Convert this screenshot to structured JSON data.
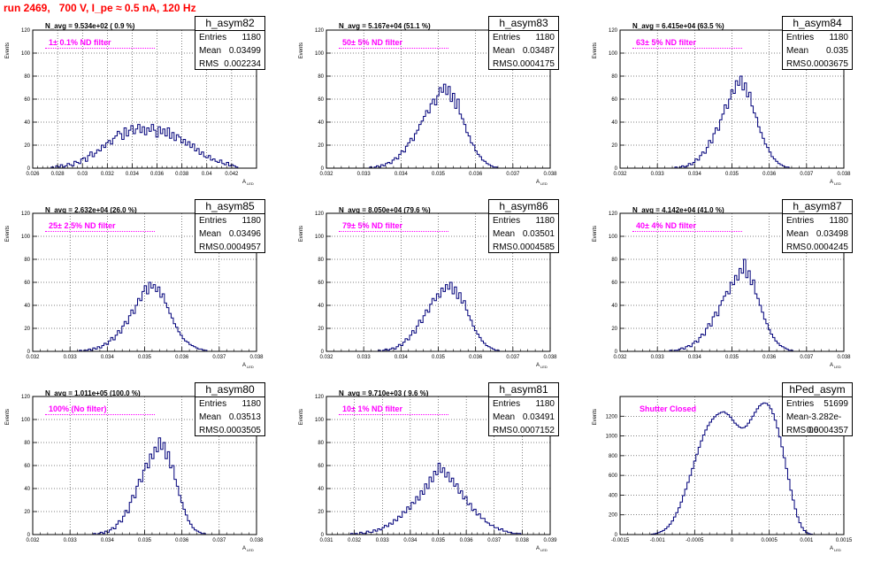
{
  "run_title": "run 2469,   700 V, I_pe ≈ 0.5 nA, 120 Hz",
  "colors": {
    "title": "#ff0000",
    "filter_label": "#ff00ff",
    "histogram": "#00007a",
    "frame": "#000000"
  },
  "ylabel": "Events",
  "xlabel": "A",
  "xlabel_sub": "LED",
  "chart_data": [
    {
      "type": "histogram",
      "name": "h_asym82",
      "navg": "N_avg = 9.534e+02 ( 0.9 %)",
      "filter": "1± 0.1% ND filter",
      "entries": "1180",
      "mean": "0.03499",
      "rms": "0.002234",
      "xlim": [
        0.026,
        0.044
      ],
      "ylim": [
        0,
        120
      ],
      "grid": true,
      "xticks": [
        0.026,
        0.028,
        0.03,
        0.032,
        0.034,
        0.036,
        0.038,
        0.04,
        0.042
      ],
      "xticklabels": [
        "0.026",
        "0.028",
        "0.03",
        "0.032",
        "0.034",
        "0.036",
        "0.038",
        "0.04",
        "0.042"
      ],
      "yticks": [
        0,
        20,
        40,
        60,
        80,
        100,
        120
      ],
      "bin_width": 0.000183,
      "counts": [
        1,
        0,
        2,
        1,
        3,
        1,
        2,
        4,
        3,
        2,
        6,
        5,
        4,
        8,
        9,
        6,
        11,
        14,
        10,
        13,
        16,
        15,
        20,
        18,
        22,
        24,
        21,
        26,
        28,
        32,
        30,
        25,
        35,
        28,
        33,
        37,
        30,
        34,
        38,
        31,
        36,
        29,
        35,
        32,
        38,
        33,
        27,
        36,
        30,
        34,
        28,
        35,
        26,
        31,
        24,
        29,
        27,
        22,
        25,
        20,
        23,
        18,
        21,
        15,
        17,
        12,
        14,
        10,
        9,
        11,
        7,
        8,
        6,
        5,
        7,
        4,
        3,
        5,
        2,
        3,
        2,
        1
      ]
    },
    {
      "type": "histogram",
      "name": "h_asym83",
      "navg": "N_avg = 5.167e+04 (51.1 %)",
      "filter": "50± 5% ND filter",
      "entries": "1180",
      "mean": "0.03487",
      "rms": "0.0004175",
      "xlim": [
        0.032,
        0.038
      ],
      "ylim": [
        0,
        120
      ],
      "grid": true,
      "xticks": [
        0.032,
        0.033,
        0.034,
        0.035,
        0.036,
        0.037,
        0.038
      ],
      "xticklabels": [
        "0.032",
        "0.033",
        "0.034",
        "0.035",
        "0.036",
        "0.037",
        "0.038"
      ],
      "yticks": [
        0,
        20,
        40,
        60,
        80,
        100,
        120
      ],
      "bin_width": 6e-05,
      "counts": [
        1,
        0,
        1,
        2,
        1,
        3,
        2,
        4,
        5,
        4,
        7,
        9,
        8,
        12,
        15,
        14,
        19,
        22,
        26,
        24,
        30,
        33,
        38,
        41,
        45,
        50,
        48,
        56,
        60,
        55,
        63,
        70,
        66,
        73,
        64,
        71,
        58,
        65,
        52,
        60,
        47,
        43,
        38,
        31,
        28,
        22,
        20,
        15,
        12,
        10,
        7,
        6,
        4,
        3,
        2,
        1,
        1
      ]
    },
    {
      "type": "histogram",
      "name": "h_asym84",
      "navg": "N_avg = 6.415e+04 (63.5 %)",
      "filter": "63± 5% ND filter",
      "entries": "1180",
      "mean": "0.035",
      "rms": "0.0003675",
      "xlim": [
        0.032,
        0.038
      ],
      "ylim": [
        0,
        120
      ],
      "grid": true,
      "xticks": [
        0.032,
        0.033,
        0.034,
        0.035,
        0.036,
        0.037,
        0.038
      ],
      "xticklabels": [
        "0.032",
        "0.033",
        "0.034",
        "0.035",
        "0.036",
        "0.037",
        "0.038"
      ],
      "yticks": [
        0,
        20,
        40,
        60,
        80,
        100,
        120
      ],
      "bin_width": 6e-05,
      "counts": [
        1,
        0,
        1,
        2,
        1,
        2,
        4,
        3,
        5,
        8,
        7,
        11,
        14,
        13,
        18,
        24,
        22,
        30,
        35,
        33,
        42,
        47,
        55,
        52,
        60,
        68,
        65,
        76,
        72,
        80,
        68,
        74,
        62,
        66,
        54,
        48,
        44,
        36,
        31,
        26,
        21,
        18,
        14,
        10,
        8,
        6,
        4,
        3,
        2,
        1,
        1
      ]
    },
    {
      "type": "histogram",
      "name": "h_asym85",
      "navg": "N_avg = 2.632e+04 (26.0 %)",
      "filter": "25± 2.5% ND filter",
      "entries": "1180",
      "mean": "0.03496",
      "rms": "0.0004957",
      "xlim": [
        0.032,
        0.038
      ],
      "ylim": [
        0,
        120
      ],
      "grid": true,
      "xticks": [
        0.032,
        0.033,
        0.034,
        0.035,
        0.036,
        0.037,
        0.038
      ],
      "xticklabels": [
        "0.032",
        "0.033",
        "0.034",
        "0.035",
        "0.036",
        "0.037",
        "0.038"
      ],
      "yticks": [
        0,
        20,
        40,
        60,
        80,
        100,
        120
      ],
      "bin_width": 6e-05,
      "counts": [
        1,
        0,
        1,
        1,
        2,
        1,
        3,
        2,
        4,
        3,
        5,
        7,
        6,
        9,
        12,
        10,
        14,
        18,
        16,
        22,
        26,
        24,
        31,
        36,
        33,
        40,
        46,
        44,
        52,
        57,
        50,
        60,
        55,
        58,
        52,
        56,
        47,
        50,
        42,
        38,
        33,
        29,
        24,
        21,
        17,
        14,
        11,
        9,
        8,
        6,
        5,
        4,
        3,
        2,
        2,
        1,
        1
      ]
    },
    {
      "type": "histogram",
      "name": "h_asym86",
      "navg": "N_avg = 8.050e+04 (79.6 %)",
      "filter": "79± 5% ND filter",
      "entries": "1180",
      "mean": "0.03501",
      "rms": "0.0004585",
      "xlim": [
        0.032,
        0.038
      ],
      "ylim": [
        0,
        120
      ],
      "grid": true,
      "xticks": [
        0.032,
        0.033,
        0.034,
        0.035,
        0.036,
        0.037,
        0.038
      ],
      "xticklabels": [
        "0.032",
        "0.033",
        "0.034",
        "0.035",
        "0.036",
        "0.037",
        "0.038"
      ],
      "yticks": [
        0,
        20,
        40,
        60,
        80,
        100,
        120
      ],
      "bin_width": 6e-05,
      "counts": [
        1,
        0,
        1,
        2,
        1,
        2,
        3,
        2,
        4,
        6,
        5,
        8,
        11,
        10,
        14,
        18,
        16,
        22,
        27,
        25,
        31,
        36,
        34,
        41,
        46,
        44,
        50,
        47,
        55,
        52,
        58,
        54,
        60,
        50,
        56,
        46,
        51,
        42,
        44,
        36,
        31,
        27,
        22,
        18,
        15,
        12,
        9,
        7,
        5,
        4,
        3,
        2,
        1,
        1
      ]
    },
    {
      "type": "histogram",
      "name": "h_asym87",
      "navg": "N_avg = 4.142e+04 (41.0 %)",
      "filter": "40± 4% ND filter",
      "entries": "1180",
      "mean": "0.03498",
      "rms": "0.0004245",
      "xlim": [
        0.032,
        0.038
      ],
      "ylim": [
        0,
        120
      ],
      "grid": true,
      "xticks": [
        0.032,
        0.033,
        0.034,
        0.035,
        0.036,
        0.037,
        0.038
      ],
      "xticklabels": [
        "0.032",
        "0.033",
        "0.034",
        "0.035",
        "0.036",
        "0.037",
        "0.038"
      ],
      "yticks": [
        0,
        20,
        40,
        60,
        80,
        100,
        120
      ],
      "bin_width": 6e-05,
      "counts": [
        1,
        0,
        1,
        1,
        2,
        3,
        2,
        4,
        5,
        4,
        7,
        9,
        8,
        12,
        15,
        14,
        20,
        24,
        22,
        30,
        34,
        31,
        40,
        44,
        48,
        52,
        50,
        60,
        58,
        66,
        62,
        72,
        68,
        80,
        64,
        70,
        58,
        62,
        50,
        46,
        40,
        34,
        28,
        24,
        19,
        15,
        12,
        9,
        7,
        5,
        4,
        3,
        2,
        1,
        1
      ]
    },
    {
      "type": "histogram",
      "name": "h_asym80",
      "navg": "N_avg = 1.011e+05 (100.0 %)",
      "filter": "100% (No filter)",
      "entries": "1180",
      "mean": "0.03513",
      "rms": "0.0003505",
      "xlim": [
        0.032,
        0.038
      ],
      "ylim": [
        0,
        120
      ],
      "grid": true,
      "xticks": [
        0.032,
        0.033,
        0.034,
        0.035,
        0.036,
        0.037,
        0.038
      ],
      "xticklabels": [
        "0.032",
        "0.033",
        "0.034",
        "0.035",
        "0.036",
        "0.037",
        "0.038"
      ],
      "yticks": [
        0,
        20,
        40,
        60,
        80,
        100,
        120
      ],
      "bin_width": 6e-05,
      "counts": [
        1,
        0,
        1,
        2,
        1,
        3,
        2,
        4,
        6,
        5,
        9,
        12,
        11,
        16,
        21,
        19,
        28,
        34,
        32,
        42,
        48,
        46,
        56,
        62,
        58,
        70,
        66,
        76,
        72,
        84,
        74,
        80,
        66,
        72,
        58,
        60,
        48,
        42,
        34,
        28,
        22,
        17,
        12,
        9,
        6,
        4,
        3,
        2,
        1,
        1
      ]
    },
    {
      "type": "histogram",
      "name": "h_asym81",
      "navg": "N_avg = 9.710e+03 ( 9.6 %)",
      "filter": "10± 1% ND filter",
      "entries": "1180",
      "mean": "0.03491",
      "rms": "0.0007152",
      "xlim": [
        0.031,
        0.039
      ],
      "ylim": [
        0,
        120
      ],
      "grid": true,
      "xticks": [
        0.031,
        0.032,
        0.033,
        0.034,
        0.035,
        0.036,
        0.037,
        0.038,
        0.039
      ],
      "xticklabels": [
        "0.031",
        "0.032",
        "0.033",
        "0.034",
        "0.035",
        "0.036",
        "0.037",
        "0.038",
        "0.039"
      ],
      "yticks": [
        0,
        20,
        40,
        60,
        80,
        100,
        120
      ],
      "bin_width": 8e-05,
      "counts": [
        1,
        0,
        1,
        0,
        2,
        1,
        1,
        3,
        2,
        2,
        4,
        3,
        5,
        4,
        6,
        8,
        7,
        10,
        9,
        13,
        12,
        16,
        15,
        20,
        19,
        24,
        22,
        28,
        27,
        33,
        30,
        38,
        35,
        44,
        40,
        50,
        46,
        55,
        52,
        62,
        54,
        58,
        50,
        54,
        46,
        49,
        42,
        44,
        36,
        38,
        31,
        33,
        26,
        27,
        21,
        22,
        17,
        18,
        14,
        14,
        11,
        10,
        8,
        8,
        6,
        6,
        4,
        5,
        3,
        3,
        2,
        2,
        1,
        1,
        1,
        1
      ]
    },
    {
      "type": "histogram",
      "name": "hPed_asym",
      "navg": "",
      "filter": "Shutter Closed",
      "entries": "51699",
      "mean": "-3.282e-06",
      "rms": "0.0004357",
      "xlim": [
        -0.0015,
        0.0015
      ],
      "ylim": [
        0,
        1400
      ],
      "grid": true,
      "xticks": [
        -0.0015,
        -0.001,
        -0.0005,
        0,
        0.0005,
        0.001,
        0.0015
      ],
      "xticklabels": [
        "-0.0015",
        "-0.001",
        "-0.0005",
        "0",
        "0.0005",
        "0.001",
        "0.0015"
      ],
      "yticks": [
        0,
        200,
        400,
        600,
        800,
        1000,
        1200
      ],
      "bin_width": 3e-05,
      "counts": [
        5,
        8,
        12,
        20,
        30,
        42,
        58,
        80,
        106,
        138,
        178,
        222,
        272,
        330,
        395,
        460,
        530,
        600,
        670,
        745,
        815,
        885,
        950,
        1010,
        1060,
        1105,
        1140,
        1170,
        1195,
        1215,
        1230,
        1240,
        1245,
        1230,
        1215,
        1190,
        1160,
        1130,
        1110,
        1090,
        1080,
        1085,
        1100,
        1130,
        1165,
        1200,
        1240,
        1275,
        1305,
        1325,
        1335,
        1330,
        1310,
        1275,
        1225,
        1160,
        1080,
        990,
        890,
        780,
        670,
        560,
        450,
        350,
        260,
        180,
        120,
        72,
        40,
        20,
        10,
        5
      ]
    }
  ]
}
